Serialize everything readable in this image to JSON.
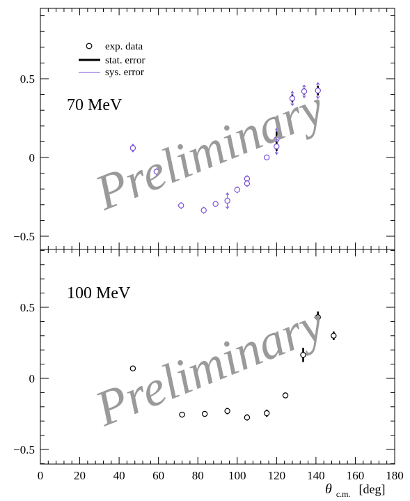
{
  "watermark": "Preliminary",
  "legend": {
    "exp_label": "exp. data",
    "stat_label": "stat. error",
    "sys_label": "sys. error"
  },
  "colors": {
    "sys": "#7a4fe0",
    "stat": "#000000",
    "marker": "#000000",
    "watermark": "#9a9a9a"
  },
  "x_axis": {
    "symbol": "θ",
    "subscript": "c.m.",
    "unit": "[deg]",
    "range": [
      0,
      180
    ],
    "ticks": [
      "0",
      "20",
      "40",
      "60",
      "80",
      "100",
      "120",
      "140",
      "160",
      "180"
    ]
  },
  "chart_data": [
    {
      "type": "scatter",
      "energy_label": "70 MeV",
      "ylim": [
        -0.6,
        0.9
      ],
      "ytick_values": [
        -0.5,
        0,
        0.5
      ],
      "ytick_labels": [
        "−0.5",
        "0",
        "0.5"
      ],
      "points": [
        {
          "x": 47,
          "y": 0.06,
          "stat": 0.012,
          "sys": 0.025
        },
        {
          "x": 59,
          "y": -0.09,
          "stat": 0.012,
          "sys": 0.02
        },
        {
          "x": 71.5,
          "y": -0.305,
          "stat": 0.012,
          "sys": 0.02
        },
        {
          "x": 83,
          "y": -0.335,
          "stat": 0.012,
          "sys": 0.02
        },
        {
          "x": 89,
          "y": -0.295,
          "stat": 0.01,
          "sys": 0.015
        },
        {
          "x": 95,
          "y": -0.275,
          "stat": 0.015,
          "sys": 0.05
        },
        {
          "x": 100,
          "y": -0.205,
          "stat": 0.012,
          "sys": 0.02
        },
        {
          "x": 105,
          "y": -0.135,
          "stat": 0.012,
          "sys": 0.02
        },
        {
          "x": 105,
          "y": -0.165,
          "stat": 0.012,
          "sys": 0.02
        },
        {
          "x": 115,
          "y": 0.0,
          "stat": 0.01,
          "sys": 0.015
        },
        {
          "x": 120,
          "y": 0.115,
          "stat": 0.05,
          "sys": 0.07
        },
        {
          "x": 120,
          "y": 0.07,
          "stat": 0.03,
          "sys": 0.05
        },
        {
          "x": 128,
          "y": 0.375,
          "stat": 0.025,
          "sys": 0.045
        },
        {
          "x": 134,
          "y": 0.42,
          "stat": 0.02,
          "sys": 0.04
        },
        {
          "x": 141,
          "y": 0.425,
          "stat": 0.03,
          "sys": 0.05
        }
      ]
    },
    {
      "type": "scatter",
      "energy_label": "100 MeV",
      "ylim": [
        -0.6,
        0.9
      ],
      "ytick_values": [
        -0.5,
        0,
        0.5
      ],
      "ytick_labels": [
        "−0.5",
        "0",
        "0.5"
      ],
      "points": [
        {
          "x": 47,
          "y": 0.07,
          "stat": 0.01,
          "sys": 0.012
        },
        {
          "x": 72,
          "y": -0.255,
          "stat": 0.02,
          "sys": 0.022
        },
        {
          "x": 83.5,
          "y": -0.25,
          "stat": 0.015,
          "sys": 0.018
        },
        {
          "x": 95,
          "y": -0.23,
          "stat": 0.022,
          "sys": 0.025
        },
        {
          "x": 105,
          "y": -0.275,
          "stat": 0.022,
          "sys": 0.025
        },
        {
          "x": 115,
          "y": -0.245,
          "stat": 0.025,
          "sys": 0.028
        },
        {
          "x": 124.5,
          "y": -0.12,
          "stat": 0.02,
          "sys": 0.022
        },
        {
          "x": 133.5,
          "y": 0.165,
          "stat": 0.05,
          "sys": 0.052
        },
        {
          "x": 141,
          "y": 0.43,
          "stat": 0.04,
          "sys": 0.042
        },
        {
          "x": 149,
          "y": 0.3,
          "stat": 0.03,
          "sys": 0.032
        }
      ]
    }
  ]
}
